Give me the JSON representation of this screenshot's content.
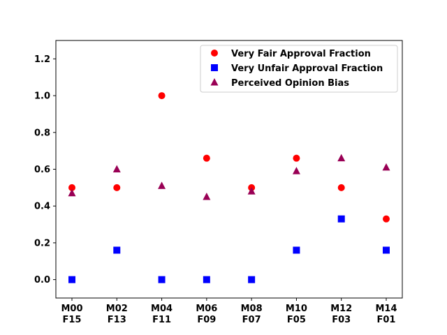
{
  "chart_data": {
    "type": "scatter",
    "categories": [
      "M00\nF15",
      "M02\nF13",
      "M04\nF11",
      "M06\nF09",
      "M08\nF07",
      "M10\nF05",
      "M12\nF03",
      "M14\nF01"
    ],
    "series": [
      {
        "name": "Very Fair Approval Fraction",
        "marker": "circle",
        "color": "#ff0000",
        "values": [
          0.5,
          0.5,
          1.0,
          0.66,
          0.5,
          0.66,
          0.5,
          0.33
        ]
      },
      {
        "name": "Very Unfair Approval Fraction",
        "marker": "square",
        "color": "#0000ff",
        "values": [
          0.0,
          0.16,
          0.0,
          0.0,
          0.0,
          0.16,
          0.33,
          0.16
        ]
      },
      {
        "name": "Perceived Opinion Bias",
        "marker": "triangle",
        "color": "#990055",
        "values": [
          0.47,
          0.6,
          0.51,
          0.45,
          0.48,
          0.59,
          0.66,
          0.61
        ]
      }
    ],
    "ylim": [
      -0.1,
      1.3
    ],
    "yticks": [
      0.0,
      0.2,
      0.4,
      0.6,
      0.8,
      1.0,
      1.2
    ],
    "ytick_labels": [
      "0.0",
      "0.2",
      "0.4",
      "0.6",
      "0.8",
      "1.0",
      "1.2"
    ],
    "grid": false,
    "legend_position": "top-right"
  }
}
